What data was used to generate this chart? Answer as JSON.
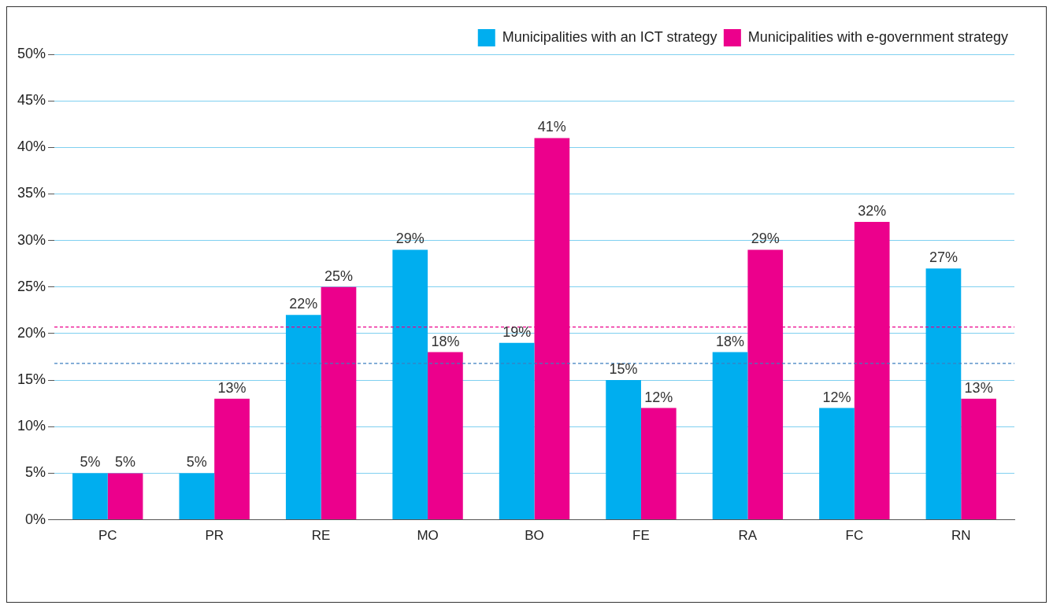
{
  "chart_data": {
    "type": "bar",
    "categories": [
      "PC",
      "PR",
      "RE",
      "MO",
      "BO",
      "FE",
      "RA",
      "FC",
      "RN"
    ],
    "series": [
      {
        "name": "Municipalities with an ICT strategy",
        "color": "#00aeef",
        "values": [
          5,
          5,
          22,
          29,
          19,
          15,
          18,
          12,
          27
        ],
        "value_labels": [
          "5%",
          "5%",
          "22%",
          "29%",
          "19%",
          "15%",
          "18%",
          "12%",
          "27%"
        ]
      },
      {
        "name": "Municipalities with e-government strategy",
        "color": "#ec008c",
        "values": [
          5,
          13,
          25,
          18,
          41,
          12,
          29,
          32,
          13
        ],
        "value_labels": [
          "5%",
          "13%",
          "25%",
          "18%",
          "41%",
          "12%",
          "29%",
          "32%",
          "13%"
        ]
      }
    ],
    "ylim": [
      0,
      50
    ],
    "yticks": [
      {
        "value": 0,
        "label": "0%"
      },
      {
        "value": 5,
        "label": "5%"
      },
      {
        "value": 10,
        "label": "10%"
      },
      {
        "value": 15,
        "label": "15%"
      },
      {
        "value": 20,
        "label": "20%"
      },
      {
        "value": 25,
        "label": "25%"
      },
      {
        "value": 30,
        "label": "30%"
      },
      {
        "value": 35,
        "label": "35%"
      },
      {
        "value": 40,
        "label": "40%"
      },
      {
        "value": 45,
        "label": "45%"
      },
      {
        "value": 50,
        "label": "50%"
      }
    ],
    "ref_lines": [
      {
        "axis": "y",
        "value": 20.7,
        "color": "#ec008c",
        "line_style": "dashed"
      },
      {
        "axis": "y",
        "value": 16.8,
        "color": "#3c7fc0",
        "line_style": "dashed"
      }
    ],
    "grid": "y",
    "legend": "top right"
  }
}
